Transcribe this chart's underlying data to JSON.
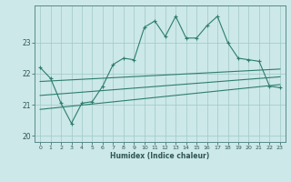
{
  "xlabel": "Humidex (Indice chaleur)",
  "ylabel": "",
  "bg_color": "#cce8e8",
  "line_color": "#2e7d6e",
  "grid_color": "#a0c8c8",
  "x_values": [
    0,
    1,
    2,
    3,
    4,
    5,
    6,
    7,
    8,
    9,
    10,
    11,
    12,
    13,
    14,
    15,
    16,
    17,
    18,
    19,
    20,
    21,
    22,
    23
  ],
  "y_main": [
    22.2,
    21.85,
    21.05,
    20.4,
    21.05,
    21.1,
    21.6,
    22.3,
    22.5,
    22.45,
    23.5,
    23.7,
    23.2,
    23.85,
    23.15,
    23.15,
    23.55,
    23.85,
    23.0,
    22.5,
    22.45,
    22.4,
    21.6,
    21.55
  ],
  "ylim": [
    19.8,
    24.2
  ],
  "xlim": [
    -0.5,
    23.5
  ],
  "yticks": [
    20,
    21,
    22,
    23
  ],
  "xticks": [
    0,
    1,
    2,
    3,
    4,
    5,
    6,
    7,
    8,
    9,
    10,
    11,
    12,
    13,
    14,
    15,
    16,
    17,
    18,
    19,
    20,
    21,
    22,
    23
  ],
  "reg_line1_x": [
    0,
    23
  ],
  "reg_line1_y": [
    21.75,
    22.15
  ],
  "reg_line2_x": [
    0,
    23
  ],
  "reg_line2_y": [
    20.85,
    21.65
  ],
  "reg_line3_x": [
    0,
    23
  ],
  "reg_line3_y": [
    21.3,
    21.9
  ]
}
